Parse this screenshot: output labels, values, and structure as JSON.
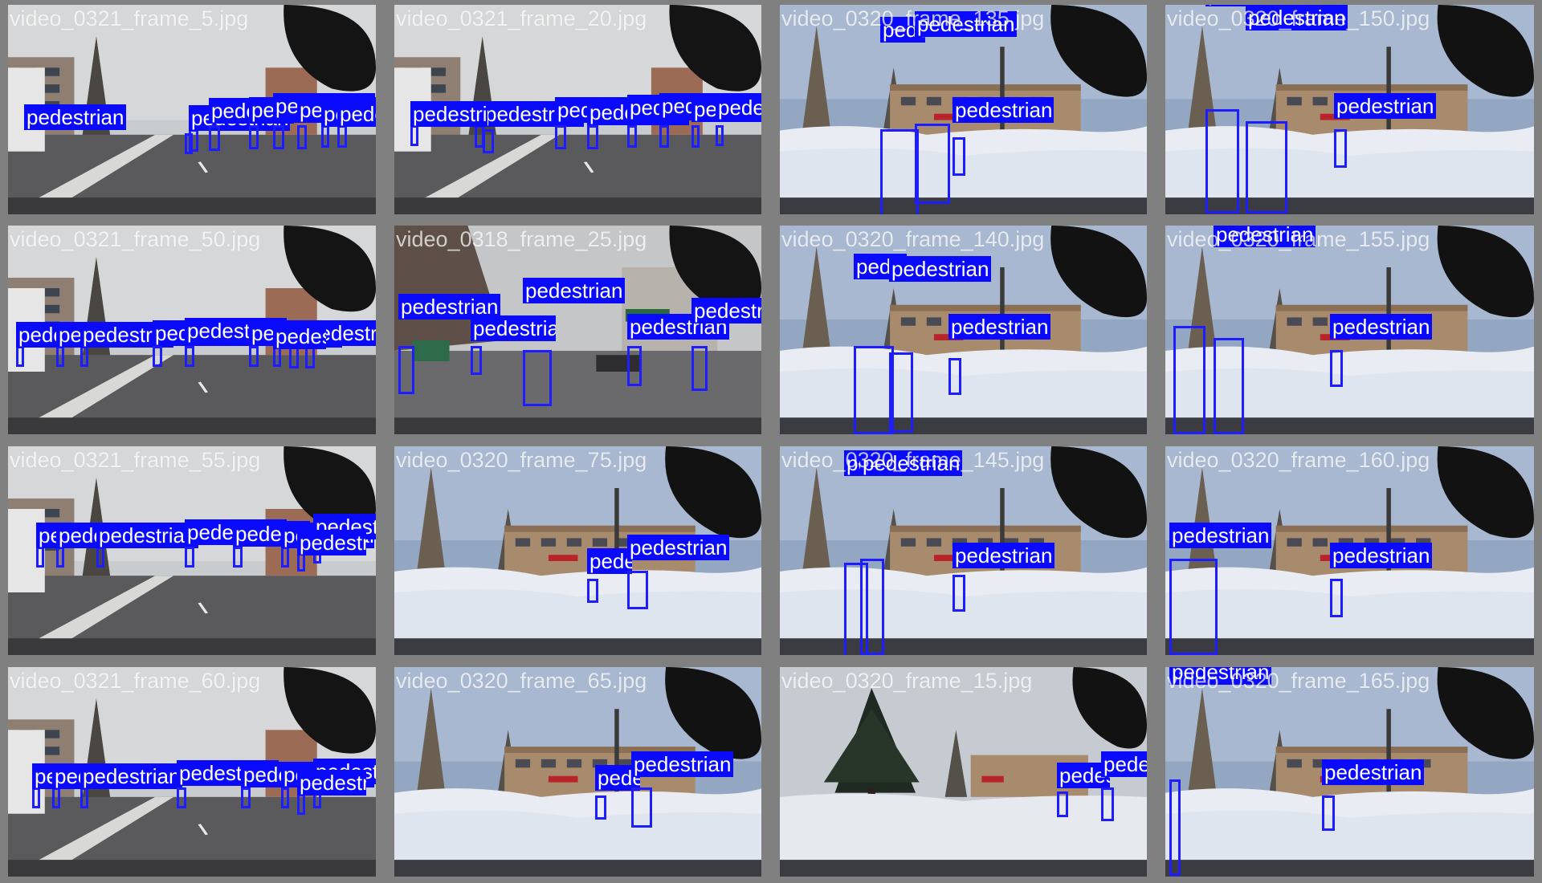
{
  "colors": {
    "box": "#1d1dff",
    "label_bg": "#0a0aff",
    "label_text": "#ffffff",
    "grid_bg": "#808080"
  },
  "label": "pedestrian",
  "tiles": [
    {
      "name": "video_0321_frame_5.jpg",
      "scene": "city",
      "pedestrians": 8
    },
    {
      "name": "video_0321_frame_20.jpg",
      "scene": "city",
      "pedestrians": 9
    },
    {
      "name": "video_0320_frame_135.jpg",
      "scene": "snow",
      "pedestrians": 3
    },
    {
      "name": "video_0320_frame_150.jpg",
      "scene": "snow",
      "pedestrians": 3
    },
    {
      "name": "video_0321_frame_50.jpg",
      "scene": "city",
      "pedestrians": 9
    },
    {
      "name": "video_0318_frame_25.jpg",
      "scene": "street",
      "pedestrians": 5
    },
    {
      "name": "video_0320_frame_140.jpg",
      "scene": "snow",
      "pedestrians": 3
    },
    {
      "name": "video_0320_frame_155.jpg",
      "scene": "snow",
      "pedestrians": 3
    },
    {
      "name": "video_0321_frame_55.jpg",
      "scene": "city",
      "pedestrians": 8
    },
    {
      "name": "video_0320_frame_75.jpg",
      "scene": "snow",
      "pedestrians": 2
    },
    {
      "name": "video_0320_frame_145.jpg",
      "scene": "snow",
      "pedestrians": 3
    },
    {
      "name": "video_0320_frame_160.jpg",
      "scene": "snow",
      "pedestrians": 2
    },
    {
      "name": "video_0321_frame_60.jpg",
      "scene": "city",
      "pedestrians": 8
    },
    {
      "name": "video_0320_frame_65.jpg",
      "scene": "snow",
      "pedestrians": 2
    },
    {
      "name": "video_0320_frame_15.jpg",
      "scene": "snowtree",
      "pedestrians": 3
    },
    {
      "name": "video_0320_frame_165.jpg",
      "scene": "snow",
      "pedestrians": 3
    }
  ]
}
